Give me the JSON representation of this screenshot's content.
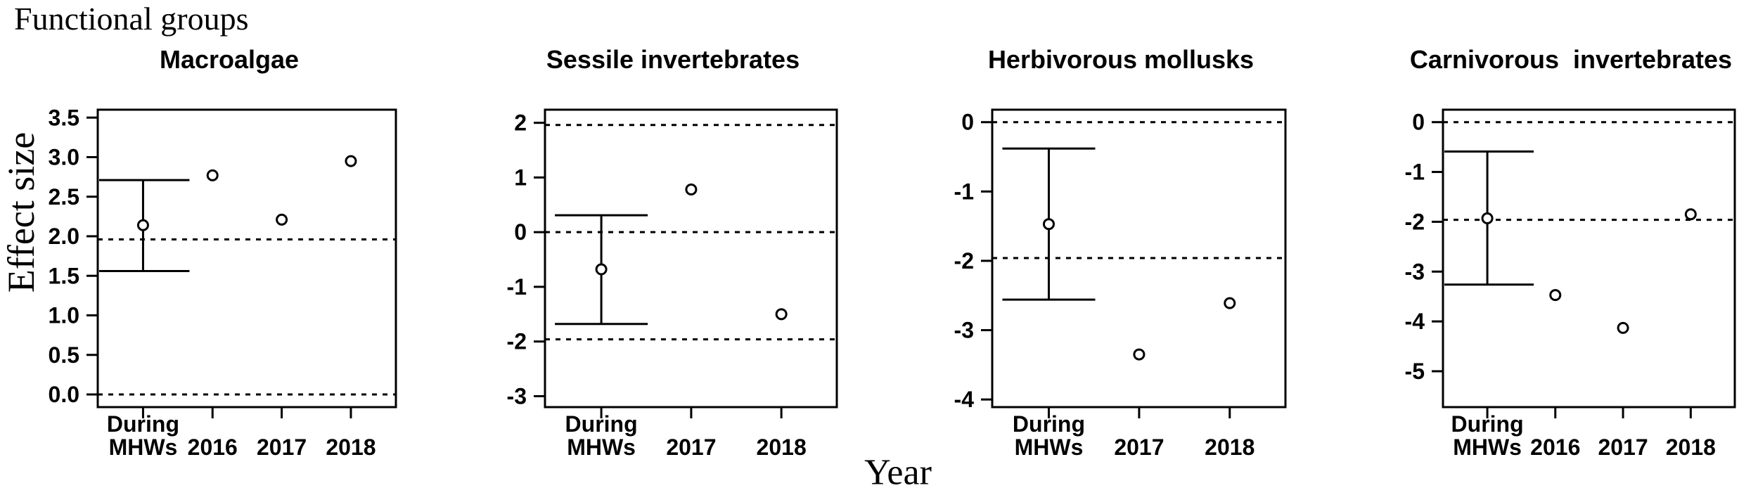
{
  "figure": {
    "title": "Functional groups",
    "y_axis_label": "Effect size",
    "x_axis_label": "Year"
  },
  "style": {
    "line_color": "#000000",
    "background": "#ffffff",
    "point_fill": "#ffffff"
  },
  "chart_data": [
    {
      "type": "scatter",
      "title": "Macroalgae",
      "xlabel": "Year",
      "ylabel": "Effect size",
      "ylim": [
        -0.16,
        3.6
      ],
      "grid": false,
      "y_ticks": {
        "values": [
          0.0,
          0.5,
          1.0,
          1.5,
          2.0,
          2.5,
          3.0,
          3.5
        ],
        "labels": [
          "0.0",
          "0.5",
          "1.0",
          "1.5",
          "2.0",
          "2.5",
          "3.0",
          "3.5"
        ]
      },
      "x_tick_labels": [
        [
          "During",
          "MHWs"
        ],
        [
          "2016"
        ],
        [
          "2017"
        ],
        [
          "2018"
        ]
      ],
      "reference_lines": [
        1.96,
        0
      ],
      "reference_line_style": "dotted",
      "points": [
        {
          "category": "During MHWs",
          "y": 2.14,
          "ci_low": 1.56,
          "ci_high": 2.71
        },
        {
          "category": "2016",
          "y": 2.77
        },
        {
          "category": "2017",
          "y": 2.21
        },
        {
          "category": "2018",
          "y": 2.95
        }
      ]
    },
    {
      "type": "scatter",
      "title": "Sessile invertebrates",
      "xlabel": "Year",
      "ylabel": "Effect size",
      "ylim": [
        -3.2,
        2.24
      ],
      "grid": false,
      "y_ticks": {
        "values": [
          -3,
          -2,
          -1,
          0,
          1,
          2
        ],
        "labels": [
          "-3",
          "-2",
          "-1",
          "0",
          "1",
          "2"
        ]
      },
      "x_tick_labels": [
        [
          "During",
          "MHWs"
        ],
        [
          "2017"
        ],
        [
          "2018"
        ]
      ],
      "reference_lines": [
        1.96,
        0,
        -1.96
      ],
      "reference_line_style": "dotted",
      "points": [
        {
          "category": "During MHWs",
          "y": -0.68,
          "ci_low": -1.68,
          "ci_high": 0.31
        },
        {
          "category": "2017",
          "y": 0.78
        },
        {
          "category": "2018",
          "y": -1.5
        }
      ]
    },
    {
      "type": "scatter",
      "title": "Herbivorous mollusks",
      "xlabel": "Year",
      "ylabel": "Effect size",
      "ylim": [
        -4.11,
        0.18
      ],
      "grid": false,
      "y_ticks": {
        "values": [
          -4,
          -3,
          -2,
          -1,
          0
        ],
        "labels": [
          "-4",
          "-3",
          "-2",
          "-1",
          "0"
        ]
      },
      "x_tick_labels": [
        [
          "During",
          "MHWs"
        ],
        [
          "2017"
        ],
        [
          "2018"
        ]
      ],
      "reference_lines": [
        0,
        -1.96
      ],
      "reference_line_style": "dotted",
      "points": [
        {
          "category": "During MHWs",
          "y": -1.47,
          "ci_low": -2.56,
          "ci_high": -0.38
        },
        {
          "category": "2017",
          "y": -3.35
        },
        {
          "category": "2018",
          "y": -2.61
        }
      ]
    },
    {
      "type": "scatter",
      "title": "Carnivorous  invertebrates",
      "xlabel": "Year",
      "ylabel": "Effect size",
      "ylim": [
        -5.72,
        0.25
      ],
      "grid": false,
      "y_ticks": {
        "values": [
          -5,
          -4,
          -3,
          -2,
          -1,
          0
        ],
        "labels": [
          "-5",
          "-4",
          "-3",
          "-2",
          "-1",
          "0"
        ]
      },
      "x_tick_labels": [
        [
          "During",
          "MHWs"
        ],
        [
          "2016"
        ],
        [
          "2017"
        ],
        [
          "2018"
        ]
      ],
      "reference_lines": [
        0,
        -1.96
      ],
      "reference_line_style": "dotted",
      "points": [
        {
          "category": "During MHWs",
          "y": -1.93,
          "ci_low": -3.26,
          "ci_high": -0.59
        },
        {
          "category": "2016",
          "y": -3.47
        },
        {
          "category": "2017",
          "y": -4.13
        },
        {
          "category": "2018",
          "y": -1.85
        }
      ]
    }
  ]
}
